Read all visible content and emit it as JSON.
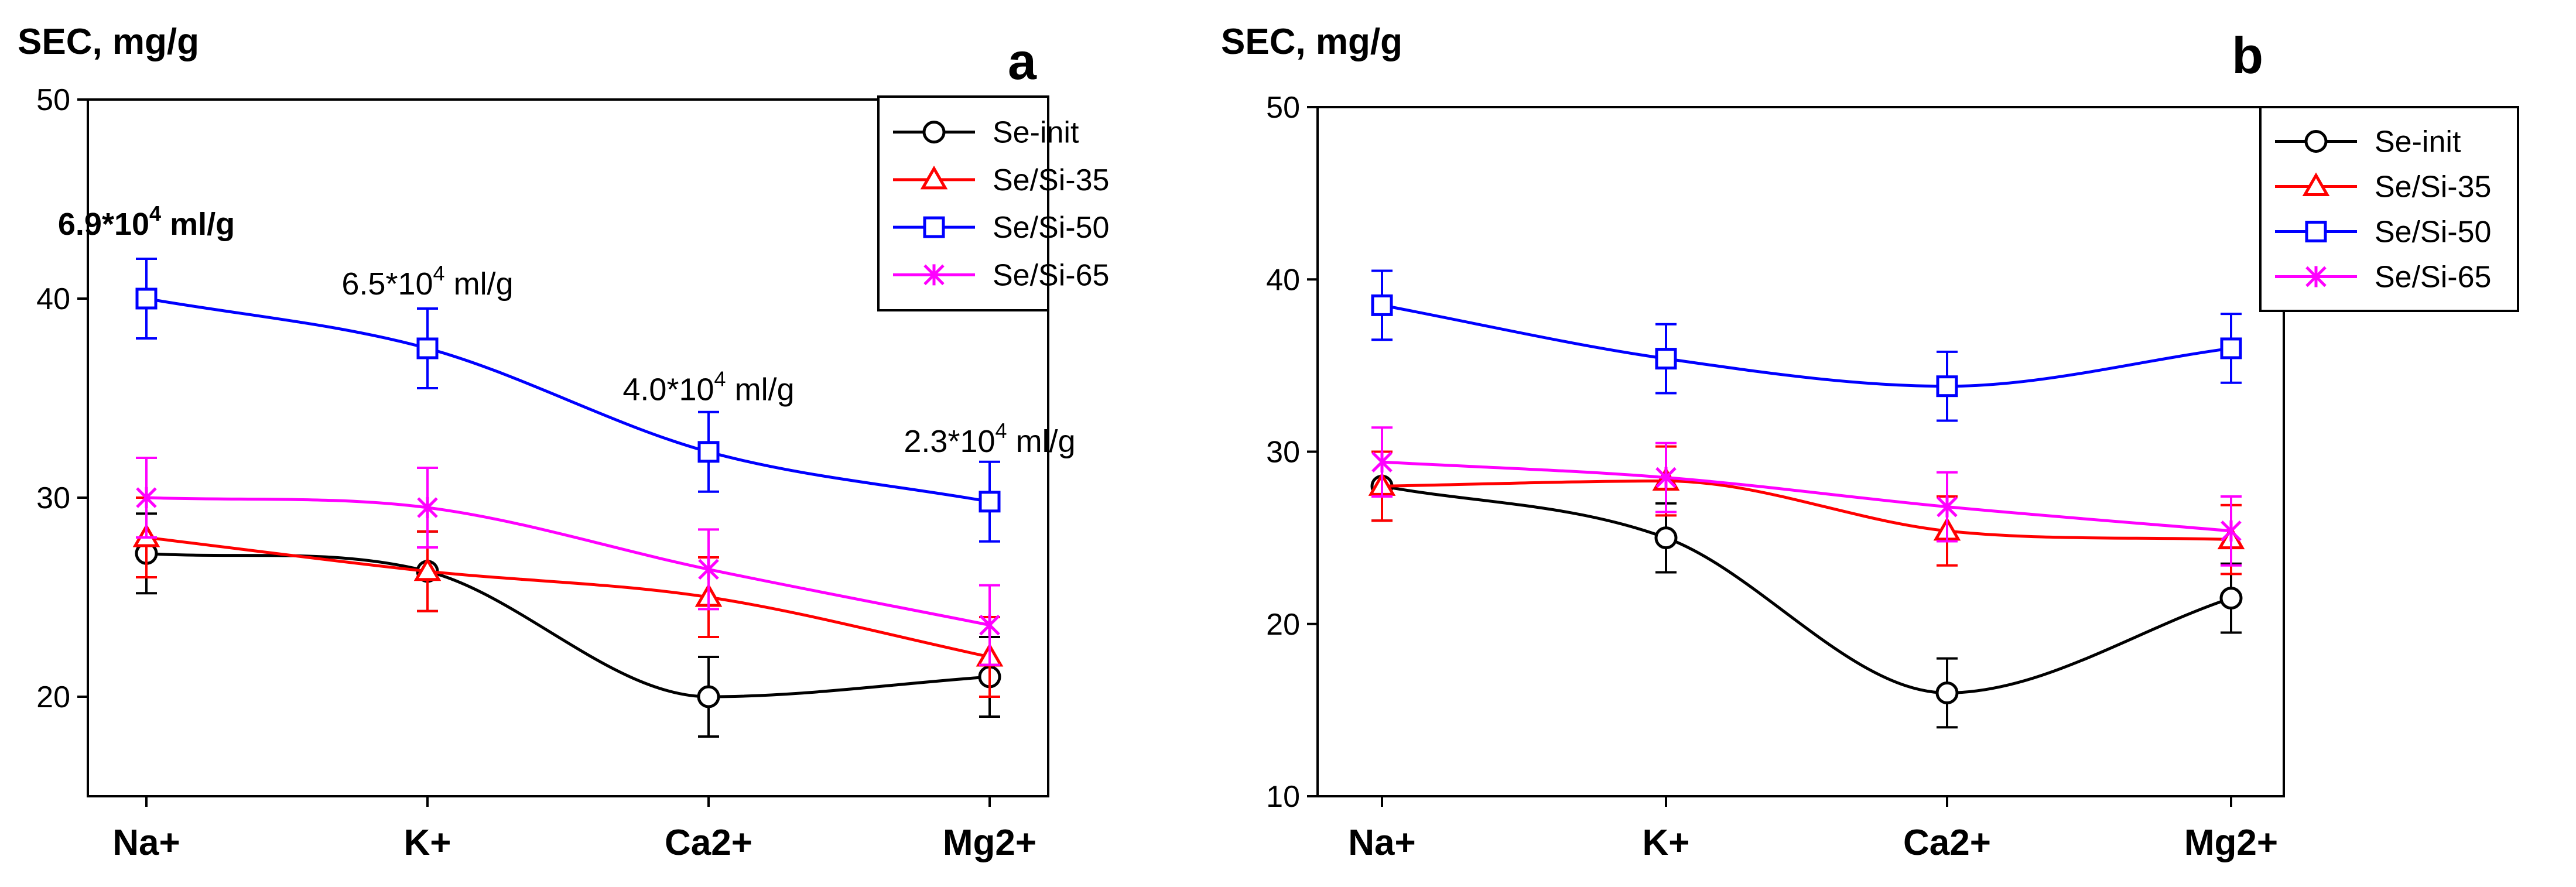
{
  "chart_data": [
    {
      "panel_label": "a",
      "type": "line",
      "ylabel": "SEC, mg/g",
      "xlabel": "",
      "categories": [
        "Na+",
        "K+",
        "Ca2+",
        "Mg2+"
      ],
      "ylim": [
        15,
        50
      ],
      "yticks": [
        20,
        30,
        40,
        50
      ],
      "grid": false,
      "legend_position": "top-right",
      "series": [
        {
          "name": "Se-init",
          "color": "#000000",
          "marker": "circle",
          "values": [
            27.2,
            26.3,
            20.0,
            21.0
          ],
          "error": [
            2.0,
            2.0,
            2.0,
            2.0
          ]
        },
        {
          "name": "Se/Si-35",
          "color": "#ff0000",
          "marker": "triangle",
          "values": [
            28.0,
            26.3,
            25.0,
            22.0
          ],
          "error": [
            2.0,
            2.0,
            2.0,
            2.0
          ]
        },
        {
          "name": "Se/Si-50",
          "color": "#0000ff",
          "marker": "square",
          "values": [
            40.0,
            37.5,
            32.3,
            29.8
          ],
          "error": [
            2.0,
            2.0,
            2.0,
            2.0
          ]
        },
        {
          "name": "Se/Si-65",
          "color": "#ff00ff",
          "marker": "x",
          "values": [
            30.0,
            29.5,
            26.4,
            23.6
          ],
          "error": [
            2.0,
            2.0,
            2.0,
            2.0
          ]
        }
      ],
      "annotations": [
        {
          "base": "6.9*10",
          "exp": "4",
          "unit": " ml/g",
          "bold": true,
          "category_index": 0,
          "y_value": 43.2
        },
        {
          "base": "6.5*10",
          "exp": "4",
          "unit": " ml/g",
          "bold": false,
          "category_index": 1,
          "y_value": 40.2
        },
        {
          "base": "4.0*10",
          "exp": "4",
          "unit": " ml/g",
          "bold": false,
          "category_index": 2,
          "y_value": 34.9
        },
        {
          "base": "2.3*10",
          "exp": "4",
          "unit": " ml/g",
          "bold": false,
          "category_index": 3,
          "y_value": 32.3
        }
      ]
    },
    {
      "panel_label": "b",
      "type": "line",
      "ylabel": "SEC, mg/g",
      "xlabel": "",
      "categories": [
        "Na+",
        "K+",
        "Ca2+",
        "Mg2+"
      ],
      "ylim": [
        10,
        50
      ],
      "yticks": [
        10,
        20,
        30,
        40,
        50
      ],
      "grid": false,
      "legend_position": "top-right",
      "series": [
        {
          "name": "Se-init",
          "color": "#000000",
          "marker": "circle",
          "values": [
            28.0,
            25.0,
            16.0,
            21.5
          ],
          "error": [
            2.0,
            2.0,
            2.0,
            2.0
          ]
        },
        {
          "name": "Se/Si-35",
          "color": "#ff0000",
          "marker": "triangle",
          "values": [
            28.0,
            28.3,
            25.4,
            24.9
          ],
          "error": [
            2.0,
            2.0,
            2.0,
            2.0
          ]
        },
        {
          "name": "Se/Si-50",
          "color": "#0000ff",
          "marker": "square",
          "values": [
            38.5,
            35.4,
            33.8,
            36.0
          ],
          "error": [
            2.0,
            2.0,
            2.0,
            2.0
          ]
        },
        {
          "name": "Se/Si-65",
          "color": "#ff00ff",
          "marker": "x",
          "values": [
            29.4,
            28.5,
            26.8,
            25.4
          ],
          "error": [
            2.0,
            2.0,
            2.0,
            2.0
          ]
        }
      ],
      "annotations": []
    }
  ]
}
